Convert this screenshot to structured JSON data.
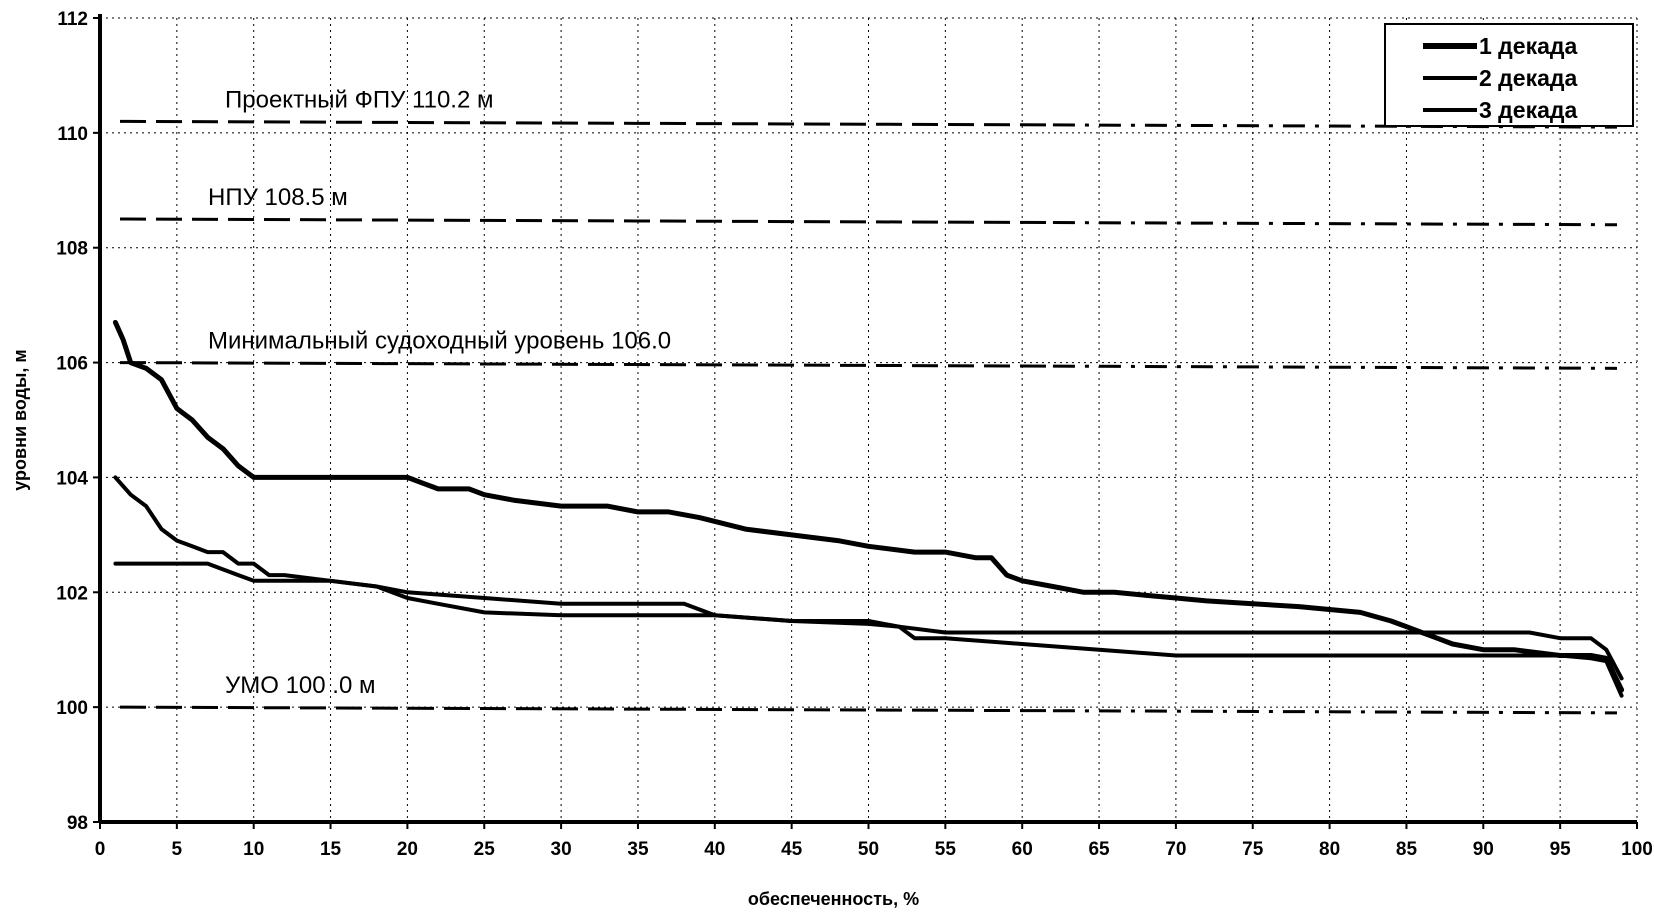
{
  "chart_data": {
    "type": "line",
    "xlabel": "обеспеченность, %",
    "ylabel": "уровни воды, м",
    "xlim": [
      0,
      100
    ],
    "ylim": [
      98,
      112
    ],
    "x_ticks": [
      "0",
      "5",
      "10",
      "15",
      "20",
      "25",
      "30",
      "35",
      "40",
      "45",
      "50",
      "55",
      "60",
      "65",
      "70",
      "75",
      "80",
      "85",
      "90",
      "95",
      "100"
    ],
    "y_ticks": [
      "98",
      "100",
      "102",
      "104",
      "106",
      "108",
      "110",
      "112"
    ],
    "grid": true,
    "legend_position": "top-right",
    "series": [
      {
        "name": "1 декада",
        "x": [
          1,
          1.5,
          2,
          3,
          4,
          5,
          6,
          7,
          8,
          9,
          10,
          12,
          15,
          18,
          20,
          21,
          22,
          24,
          25,
          27,
          30,
          33,
          35,
          37,
          39,
          42,
          45,
          48,
          50,
          53,
          55,
          57,
          58,
          59,
          60,
          62,
          64,
          66,
          68,
          70,
          72,
          75,
          78,
          80,
          82,
          84,
          85,
          86,
          87,
          88,
          90,
          92,
          95,
          97,
          98,
          99
        ],
        "values": [
          106.7,
          106.4,
          106.0,
          105.9,
          105.7,
          105.2,
          105.0,
          104.7,
          104.5,
          104.2,
          104.0,
          104.0,
          104.0,
          104.0,
          104.0,
          103.9,
          103.8,
          103.8,
          103.7,
          103.6,
          103.5,
          103.5,
          103.4,
          103.4,
          103.3,
          103.1,
          103.0,
          102.9,
          102.8,
          102.7,
          102.7,
          102.6,
          102.6,
          102.3,
          102.2,
          102.1,
          102.0,
          102.0,
          101.95,
          101.9,
          101.85,
          101.8,
          101.75,
          101.7,
          101.65,
          101.5,
          101.4,
          101.3,
          101.2,
          101.1,
          101.0,
          101.0,
          100.9,
          100.9,
          100.85,
          100.3
        ]
      },
      {
        "name": "2 декада",
        "x": [
          1,
          2,
          3,
          4,
          5,
          6,
          7,
          8,
          9,
          10,
          11,
          12,
          15,
          18,
          20,
          25,
          30,
          35,
          38,
          40,
          45,
          50,
          52,
          55,
          60,
          65,
          70,
          75,
          80,
          85,
          90,
          93,
          95,
          97,
          98,
          99
        ],
        "values": [
          104.0,
          103.7,
          103.5,
          103.1,
          102.9,
          102.8,
          102.7,
          102.7,
          102.5,
          102.5,
          102.3,
          102.3,
          102.2,
          102.1,
          102.0,
          101.9,
          101.8,
          101.8,
          101.8,
          101.6,
          101.5,
          101.45,
          101.4,
          101.3,
          101.3,
          101.3,
          101.3,
          101.3,
          101.3,
          101.3,
          101.3,
          101.3,
          101.2,
          101.2,
          101.0,
          100.5
        ]
      },
      {
        "name": "3 декада",
        "x": [
          1,
          5,
          7,
          9,
          10,
          12,
          15,
          18,
          20,
          22,
          25,
          30,
          35,
          40,
          45,
          50,
          52,
          53,
          55,
          60,
          65,
          70,
          75,
          80,
          85,
          90,
          95,
          97,
          98,
          99
        ],
        "values": [
          102.5,
          102.5,
          102.5,
          102.3,
          102.2,
          102.2,
          102.2,
          102.1,
          101.9,
          101.8,
          101.65,
          101.6,
          101.6,
          101.6,
          101.5,
          101.5,
          101.4,
          101.2,
          101.2,
          101.1,
          101.0,
          100.9,
          100.9,
          100.9,
          100.9,
          100.9,
          100.9,
          100.85,
          100.8,
          100.2
        ]
      }
    ],
    "reference_lines": [
      {
        "label": "Проектный ФПУ 110.2 м",
        "y_start": 110.2,
        "y_end": 110.1
      },
      {
        "label": "НПУ 108.5 м",
        "y_start": 108.5,
        "y_end": 108.4
      },
      {
        "label": "Минимальный судоходный уровень 106.0",
        "y_start": 106.0,
        "y_end": 105.9
      },
      {
        "label": "УМО 100 .0 м",
        "y_start": 100.0,
        "y_end": 99.9
      }
    ]
  }
}
